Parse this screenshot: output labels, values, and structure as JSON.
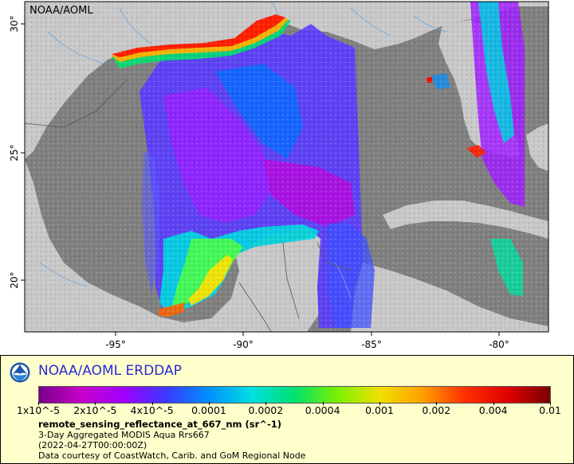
{
  "map": {
    "watermark": "NOAA/AOML",
    "x_ticks": [
      "-95°",
      "-90°",
      "-85°",
      "-80°"
    ],
    "y_ticks": [
      "30°",
      "25°",
      "20°"
    ],
    "colors": {
      "land": "#c8c8c8",
      "nodata": "#808080",
      "frame_bg": "#ffffff"
    }
  },
  "legend": {
    "title": "NOAA/AOML ERDDAP",
    "colorbar_labels": [
      "1x10^-5",
      "2x10^-5",
      "4x10^-5",
      "0.0001",
      "0.0002",
      "0.0004",
      "0.001",
      "0.002",
      "0.004",
      "0.01"
    ],
    "variable": "remote_sensing_reflectance_at_667_nm (sr^-1)",
    "description": "3-Day Aggregated MODIS Aqua Rrs667",
    "time": "(2022-04-27T00:00:00Z)",
    "credit": "Data courtesy of CoastWatch, Carib. and GoM Regional Node",
    "palette": [
      "#7a0089",
      "#c800c8",
      "#a000ff",
      "#3a3aff",
      "#0090ff",
      "#00e0e0",
      "#00e070",
      "#7af000",
      "#f0e000",
      "#ffa000",
      "#ff3000",
      "#e00000",
      "#7a0000"
    ]
  }
}
